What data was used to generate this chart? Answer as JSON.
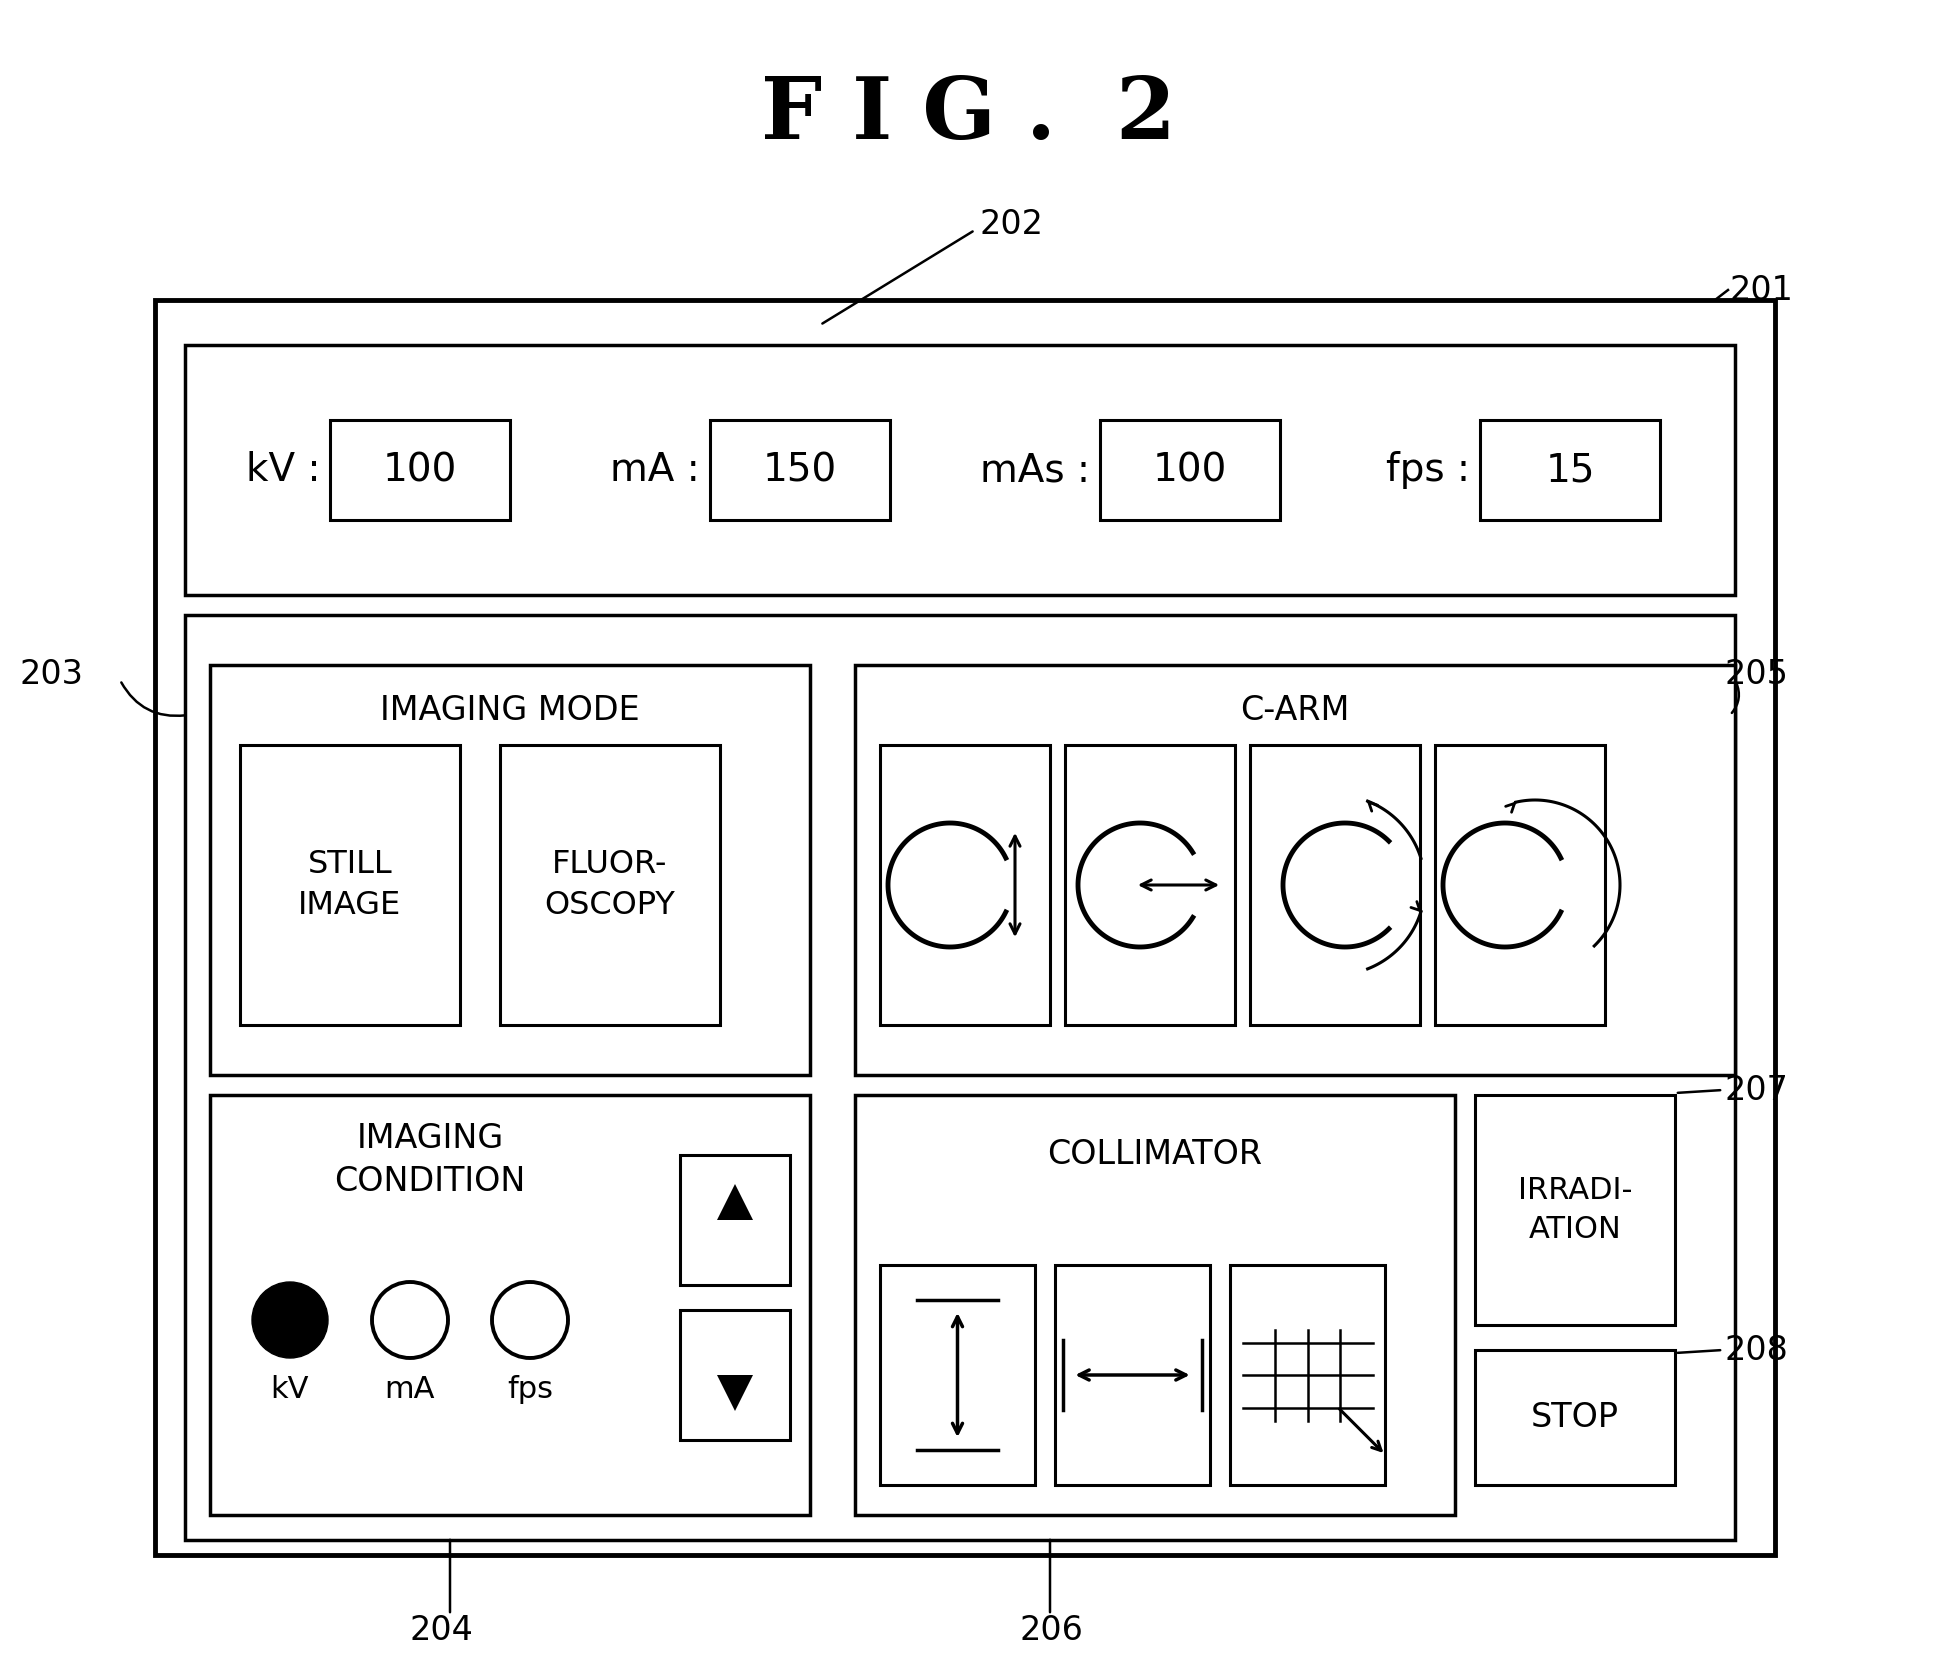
{
  "title": "F I G .  2",
  "bg": "#ffffff",
  "lw_outer": 3.5,
  "lw_panel": 2.5,
  "lw_btn": 2.2,
  "kv_label": "kV :",
  "kv_val": "100",
  "ma_label": "mA :",
  "ma_val": "150",
  "mas_label": "mAs :",
  "mas_val": "100",
  "fps_label": "fps :",
  "fps_val": "15",
  "imaging_mode_title": "IMAGING MODE",
  "still_image": "STILL\nIMAGE",
  "fluoroscopy": "FLUOR-\nOSCOPY",
  "imaging_condition_title": "IMAGING\nCONDITION",
  "carm_title": "C-ARM",
  "collimator_title": "COLLIMATOR",
  "irradiation": "IRRADI-\nATION",
  "stop": "STOP"
}
